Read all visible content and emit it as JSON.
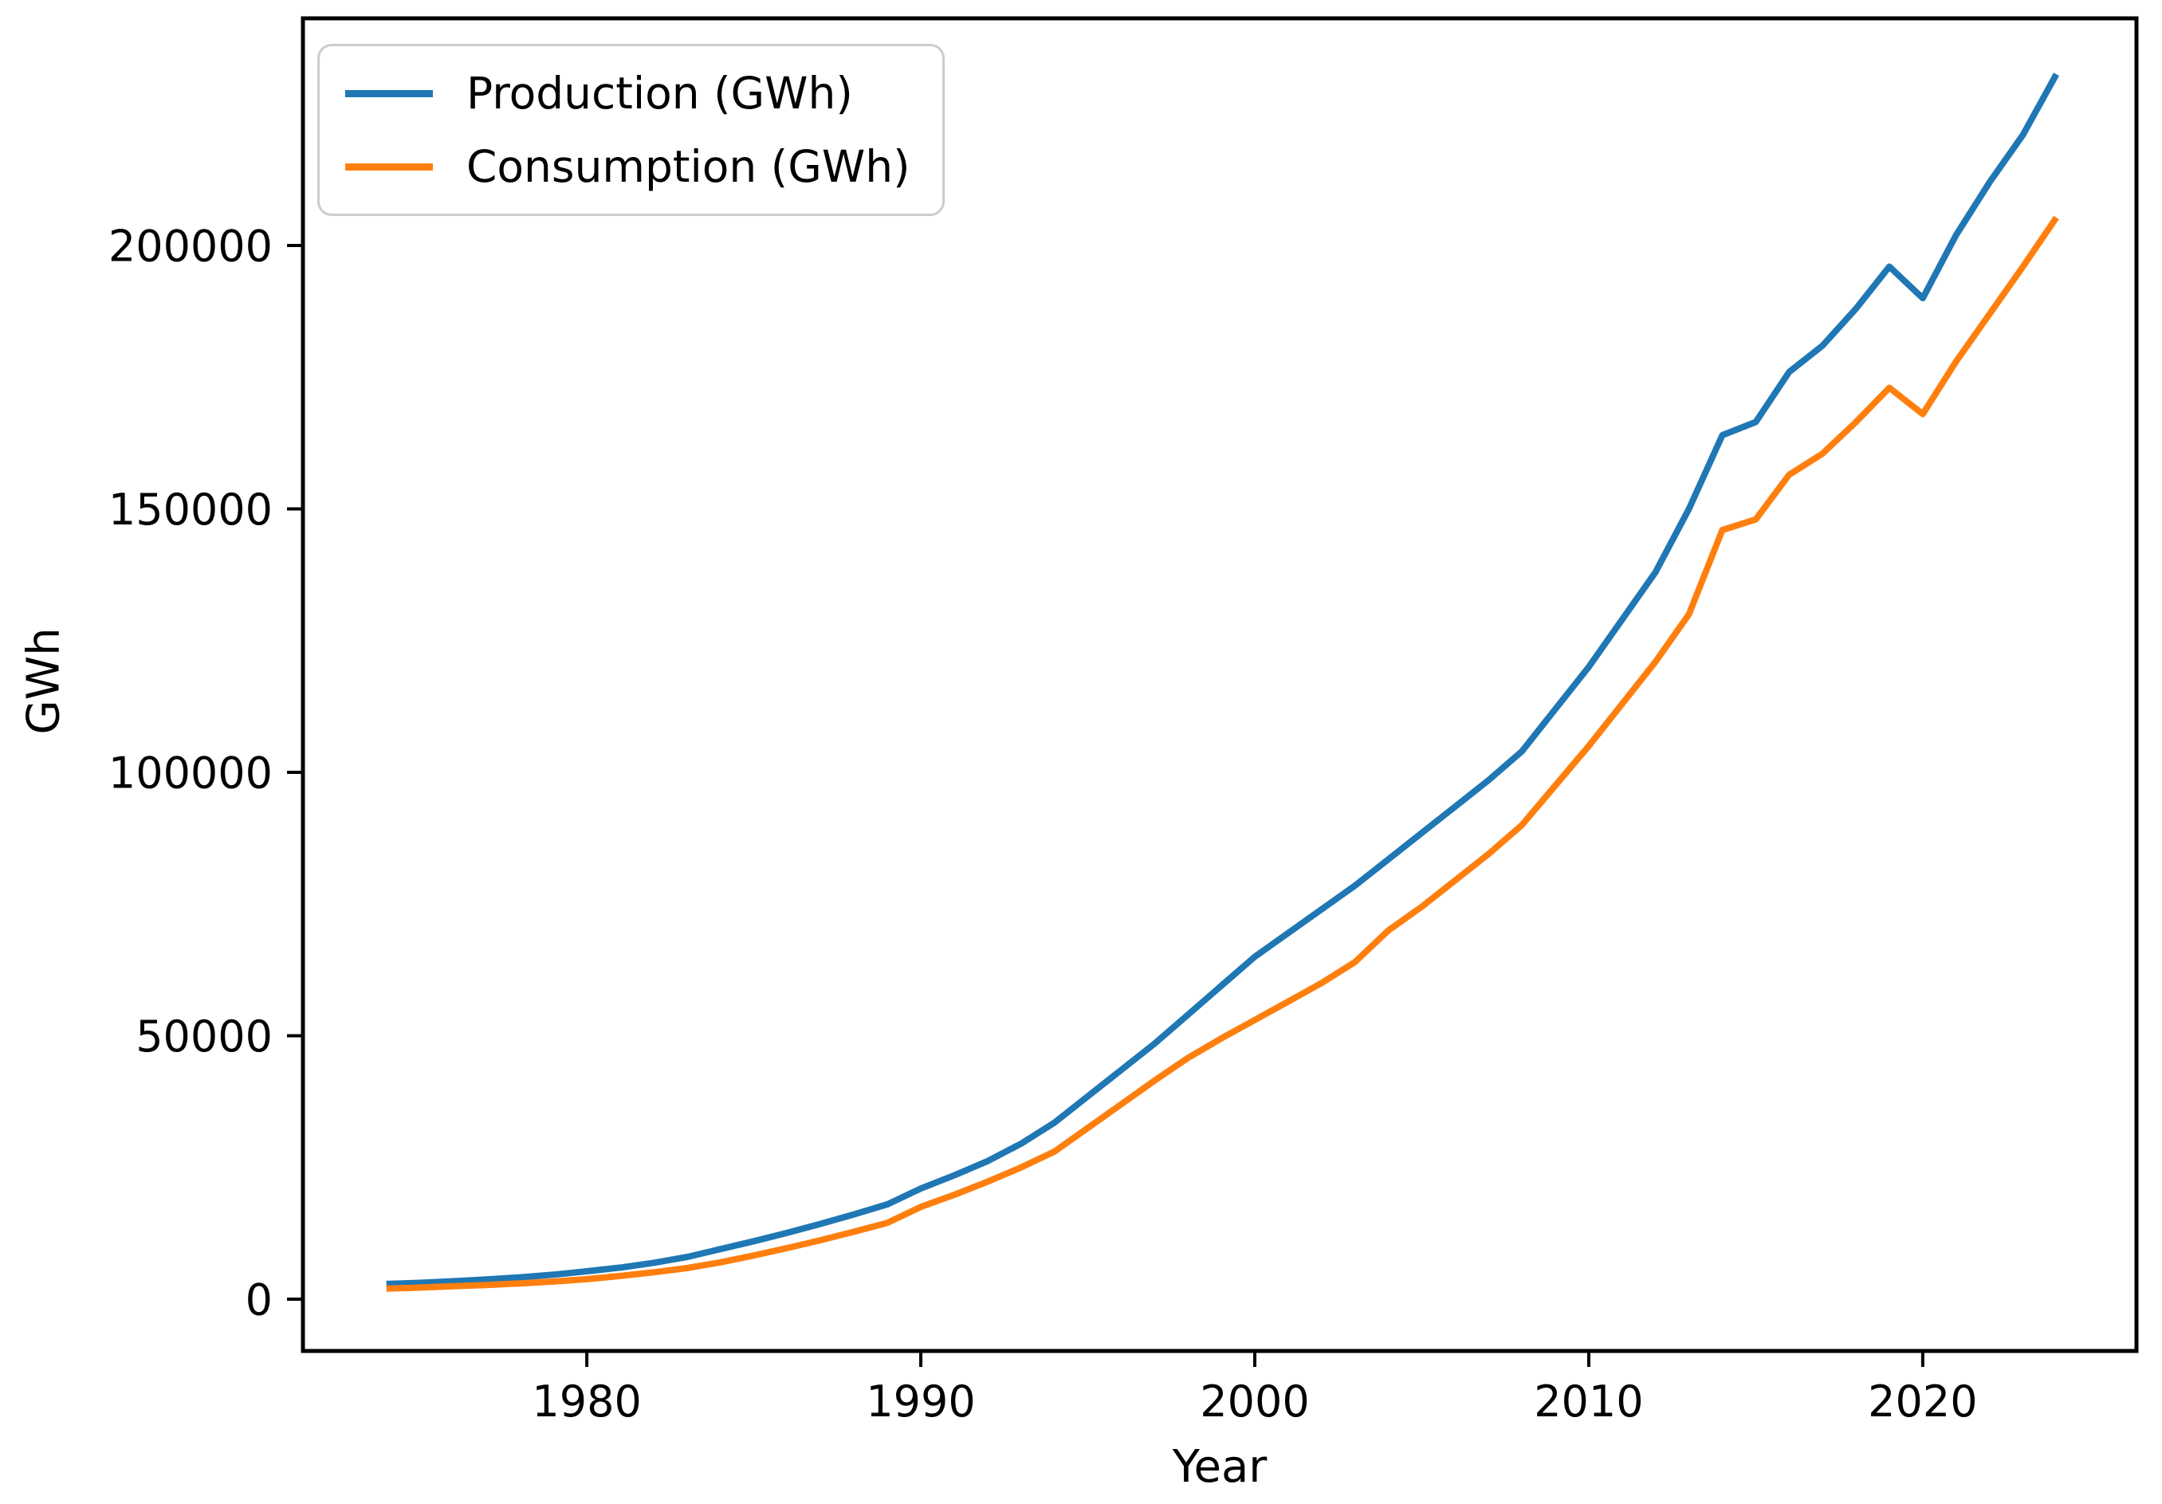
{
  "chart_data": {
    "type": "line",
    "title": "",
    "xlabel": "Year",
    "ylabel": "GWh",
    "grid": false,
    "legend_position": "upper-left",
    "background": "#ffffff",
    "axis_color": "#000000",
    "legend_border_color": "#cccccc",
    "x_ticks": [
      1980,
      1990,
      2000,
      2010,
      2020
    ],
    "y_ticks": [
      0,
      50000,
      100000,
      150000,
      200000
    ],
    "xlim": [
      1971.5,
      2026.4
    ],
    "ylim": [
      -9830,
      243120
    ],
    "x": [
      1974,
      1975,
      1976,
      1977,
      1978,
      1979,
      1980,
      1981,
      1982,
      1983,
      1984,
      1985,
      1986,
      1987,
      1988,
      1989,
      1990,
      1991,
      1992,
      1993,
      1994,
      1995,
      1996,
      1997,
      1998,
      1999,
      2000,
      2001,
      2002,
      2003,
      2004,
      2005,
      2006,
      2007,
      2008,
      2009,
      2010,
      2011,
      2012,
      2013,
      2014,
      2015,
      2016,
      2017,
      2018,
      2019,
      2020,
      2021,
      2022,
      2023,
      2024
    ],
    "series": [
      {
        "name": "Production (GWh)",
        "color": "#1f77b4",
        "values": [
          2900,
          3100,
          3400,
          3750,
          4150,
          4650,
          5300,
          6000,
          6900,
          8000,
          9500,
          11000,
          12600,
          14300,
          16100,
          18000,
          21000,
          23500,
          26200,
          29500,
          33500,
          38500,
          43500,
          48500,
          54000,
          59500,
          65000,
          69500,
          74000,
          78500,
          83500,
          88500,
          93500,
          98500,
          104000,
          112000,
          120000,
          129000,
          138000,
          150000,
          164000,
          166500,
          176000,
          181000,
          188000,
          196000,
          190000,
          202000,
          212000,
          221000,
          232500
        ]
      },
      {
        "name": "Consumption (GWh)",
        "color": "#ff7f0e",
        "values": [
          2000,
          2200,
          2450,
          2700,
          3000,
          3350,
          3800,
          4400,
          5100,
          5900,
          7000,
          8300,
          9700,
          11200,
          12800,
          14500,
          17500,
          19800,
          22300,
          25000,
          28000,
          32500,
          37000,
          41500,
          45800,
          49500,
          53000,
          56500,
          60000,
          64000,
          70000,
          74500,
          79500,
          84500,
          90000,
          97500,
          105000,
          113000,
          121000,
          130000,
          146000,
          148000,
          156500,
          160500,
          166500,
          173000,
          168000,
          178000,
          187000,
          196000,
          205300
        ]
      }
    ]
  }
}
